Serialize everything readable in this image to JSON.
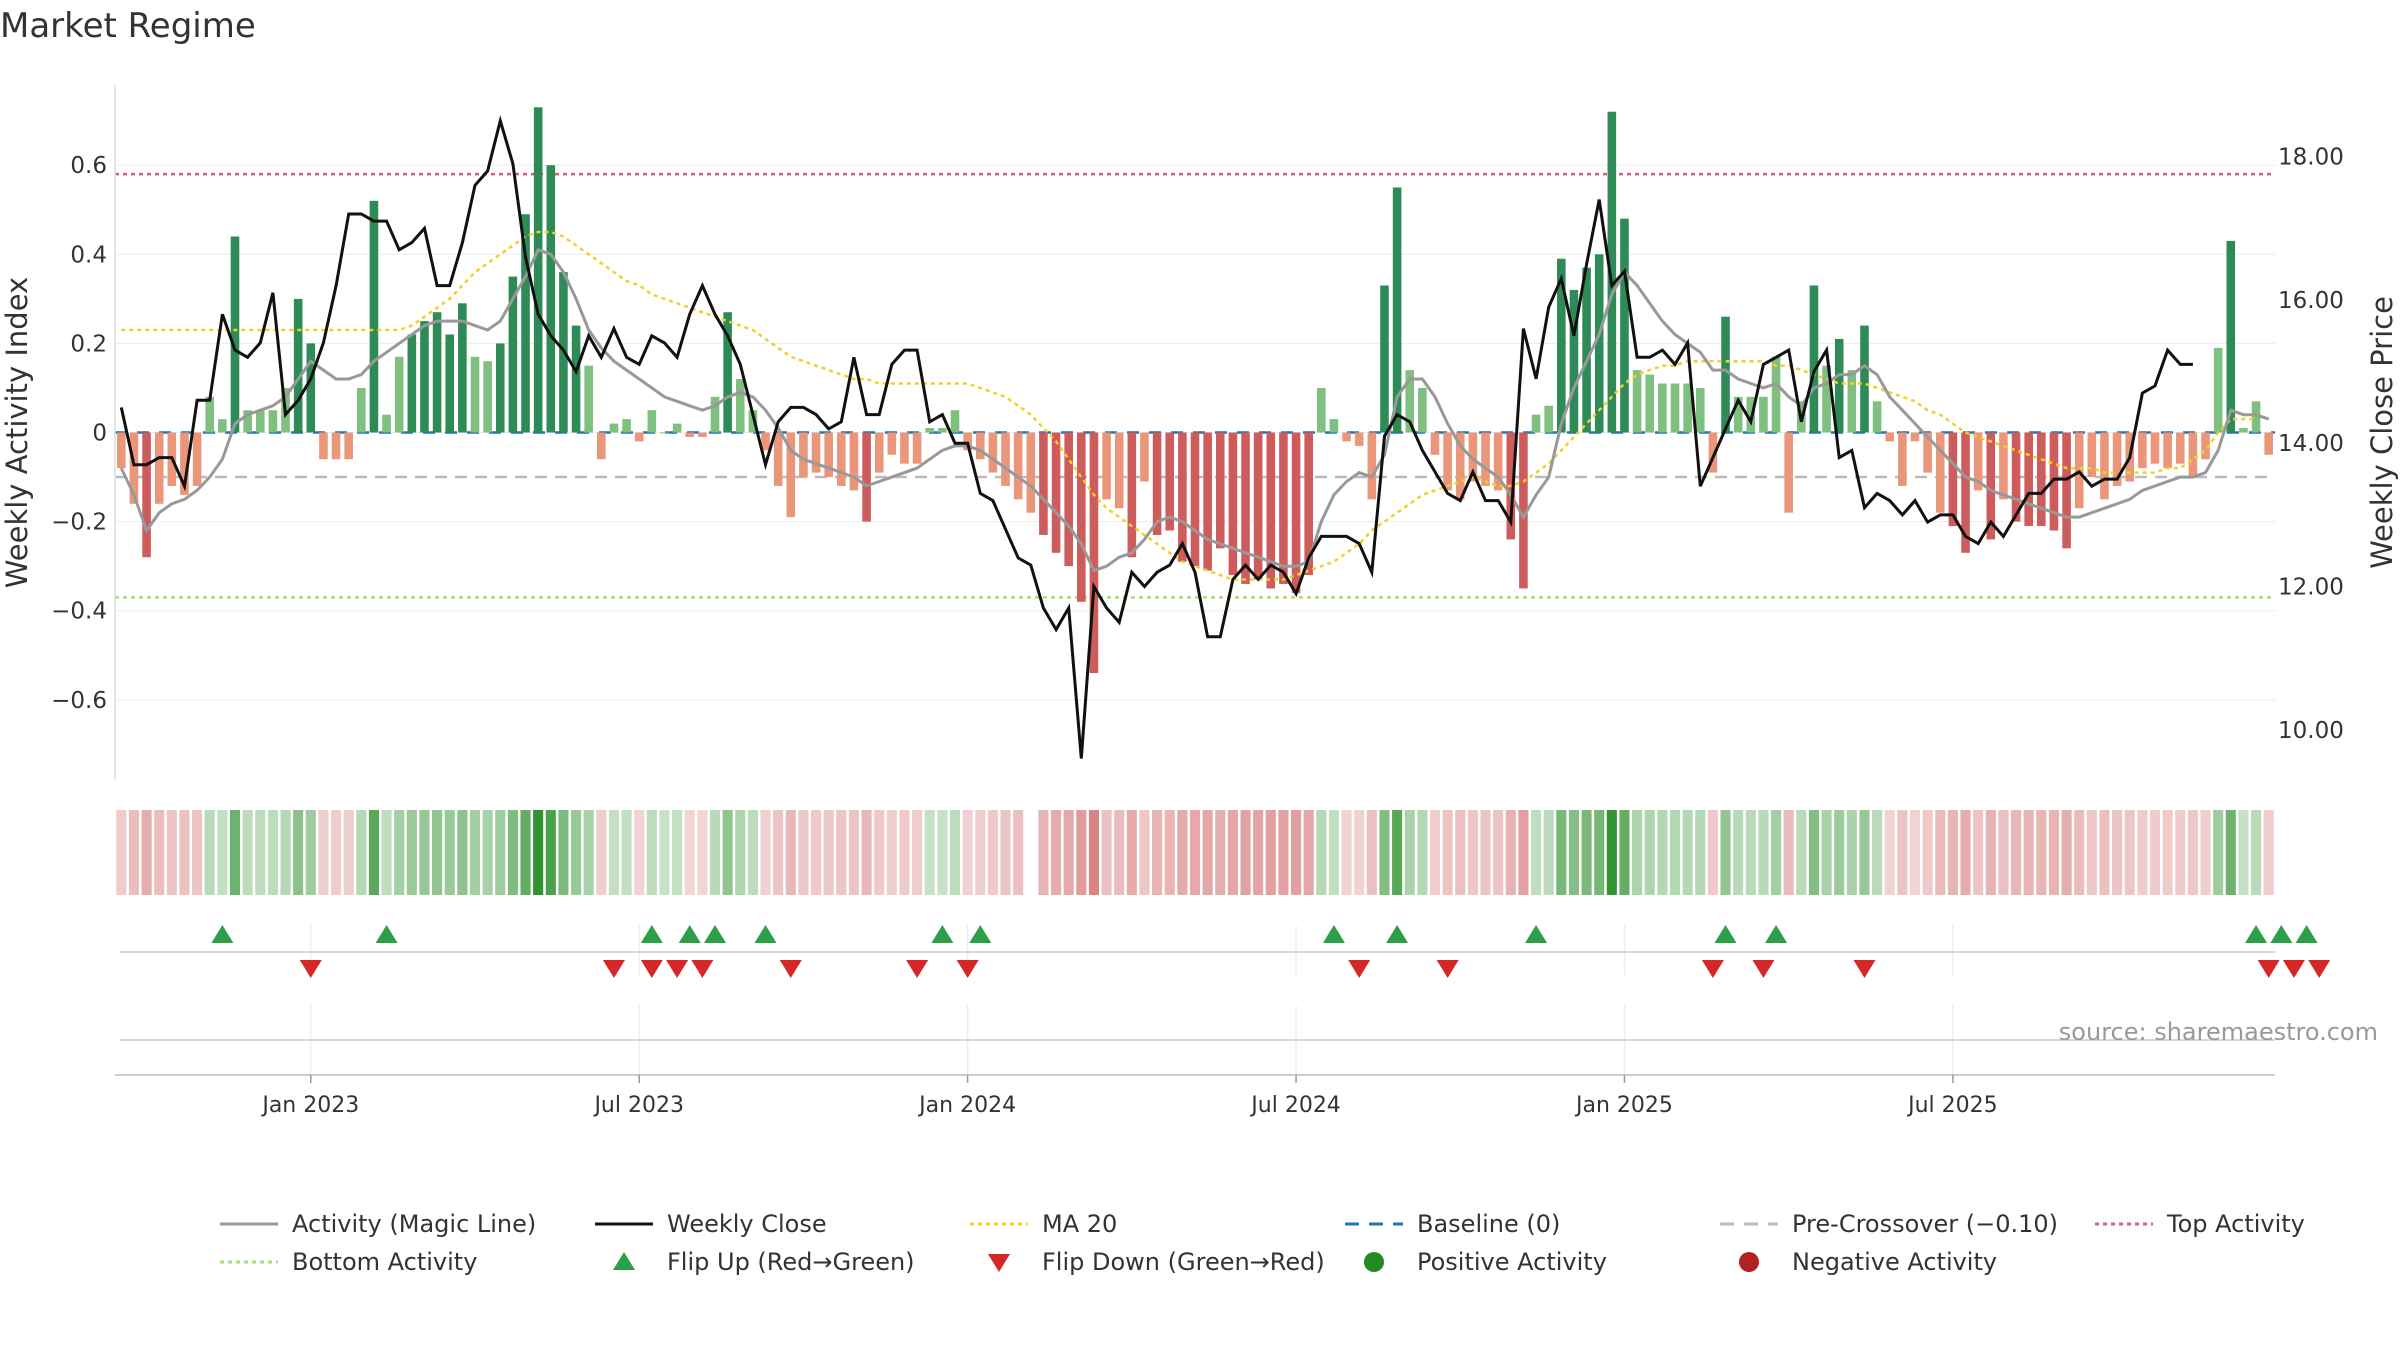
{
  "title": "Market Regime",
  "source": "source: sharemaestro.com",
  "colors": {
    "pos_dark": "#2e8b57",
    "pos_light": "#7fbf7f",
    "neg_dark": "#cd5c5c",
    "neg_light": "#e9967a",
    "close": "#111111",
    "magic": "#999999",
    "ma": "#f2d024",
    "baseline": "#1f77b4",
    "pre": "#bbbbbb",
    "top": "#e05c6e",
    "bottom": "#a6e07a",
    "flip_up": "#2ca048",
    "flip_down": "#d62728",
    "pos_dot": "#228b22",
    "neg_dot": "#b22222"
  },
  "chart_data": {
    "type": "bar",
    "x_axis": {
      "ticks": [
        "Jan 2023",
        "Jul 2023",
        "Jan 2024",
        "Jul 2024",
        "Jan 2025",
        "Jul 2025"
      ]
    },
    "left_axis": {
      "label": "Weekly Activity Index",
      "ticks": [
        "0.6",
        "0.4",
        "0.2",
        "0",
        "−0.2",
        "−0.4",
        "−0.6"
      ],
      "ylim": [
        -0.78,
        0.78
      ]
    },
    "right_axis": {
      "label": "Weekly Close Price",
      "ticks": [
        "18.00",
        "16.00",
        "14.00",
        "12.00",
        "10.00"
      ],
      "ylim": [
        9.3,
        19.0
      ]
    },
    "thresholds": {
      "top": 0.58,
      "pre_crossover": -0.1,
      "bottom": -0.37,
      "baseline": 0
    },
    "activity": [
      -0.08,
      -0.16,
      -0.28,
      -0.16,
      -0.12,
      -0.14,
      -0.12,
      0.08,
      0.03,
      0.44,
      0.05,
      0.05,
      0.05,
      0.1,
      0.3,
      0.2,
      -0.06,
      -0.06,
      -0.06,
      0.1,
      0.52,
      0.04,
      0.17,
      0.22,
      0.25,
      0.27,
      0.22,
      0.29,
      0.17,
      0.16,
      0.2,
      0.35,
      0.49,
      0.73,
      0.6,
      0.36,
      0.24,
      0.15,
      -0.06,
      0.02,
      0.03,
      -0.02,
      0.05,
      0.0,
      0.02,
      -0.01,
      -0.01,
      0.08,
      0.27,
      0.12,
      0.05,
      -0.04,
      -0.12,
      -0.19,
      -0.1,
      -0.09,
      -0.1,
      -0.12,
      -0.13,
      -0.2,
      -0.09,
      -0.05,
      -0.07,
      -0.07,
      0.01,
      0.01,
      0.05,
      -0.04,
      -0.06,
      -0.09,
      -0.12,
      -0.15,
      -0.18,
      -0.23,
      -0.27,
      -0.3,
      -0.38,
      -0.54,
      -0.15,
      -0.17,
      -0.28,
      -0.11,
      -0.23,
      -0.22,
      -0.29,
      -0.3,
      -0.31,
      -0.26,
      -0.32,
      -0.34,
      -0.33,
      -0.35,
      -0.34,
      -0.36,
      -0.32,
      0.1,
      0.03,
      -0.02,
      -0.03,
      -0.15,
      0.33,
      0.55,
      0.14,
      0.1,
      -0.05,
      -0.13,
      -0.15,
      -0.11,
      -0.12,
      -0.13,
      -0.24,
      -0.35,
      0.04,
      0.06,
      0.39,
      0.32,
      0.37,
      0.4,
      0.72,
      0.48,
      0.14,
      0.13,
      0.11,
      0.11,
      0.11,
      0.1,
      -0.09,
      0.26,
      0.08,
      0.08,
      0.08,
      0.17,
      -0.18,
      0.07,
      0.33,
      0.15,
      0.21,
      0.14,
      0.24,
      0.07,
      -0.02,
      -0.12,
      -0.02,
      -0.09,
      -0.18,
      -0.21,
      -0.27,
      -0.13,
      -0.24,
      -0.15,
      -0.2,
      -0.21,
      -0.21,
      -0.22,
      -0.26,
      -0.17,
      -0.1,
      -0.15,
      -0.12,
      -0.11,
      -0.08,
      -0.07,
      -0.08,
      -0.07,
      -0.1,
      -0.06,
      0.19,
      0.43,
      0.01,
      0.07,
      -0.05
    ],
    "close": [
      14.5,
      13.7,
      13.7,
      13.8,
      13.8,
      13.4,
      14.6,
      14.6,
      15.8,
      15.3,
      15.2,
      15.4,
      16.1,
      14.4,
      14.6,
      14.9,
      15.4,
      16.2,
      17.2,
      17.2,
      17.1,
      17.1,
      16.7,
      16.8,
      17.0,
      16.2,
      16.2,
      16.8,
      17.6,
      17.8,
      18.5,
      17.9,
      16.6,
      15.8,
      15.5,
      15.3,
      15.0,
      15.5,
      15.2,
      15.6,
      15.2,
      15.1,
      15.5,
      15.4,
      15.2,
      15.8,
      16.2,
      15.8,
      15.5,
      15.1,
      14.4,
      13.7,
      14.3,
      14.5,
      14.5,
      14.4,
      14.2,
      14.3,
      15.2,
      14.4,
      14.4,
      15.1,
      15.3,
      15.3,
      14.3,
      14.4,
      14.0,
      14.0,
      13.3,
      13.2,
      12.8,
      12.4,
      12.3,
      11.7,
      11.4,
      11.7,
      9.6,
      12.0,
      11.7,
      11.5,
      12.2,
      12.0,
      12.2,
      12.3,
      12.6,
      12.2,
      11.3,
      11.3,
      12.1,
      12.3,
      12.1,
      12.3,
      12.2,
      11.9,
      12.4,
      12.7,
      12.7,
      12.7,
      12.6,
      12.2,
      14.1,
      14.4,
      14.3,
      13.9,
      13.6,
      13.3,
      13.2,
      13.6,
      13.2,
      13.2,
      12.9,
      15.6,
      14.9,
      15.9,
      16.3,
      15.5,
      16.5,
      17.4,
      16.2,
      16.4,
      15.2,
      15.2,
      15.3,
      15.1,
      15.4,
      13.4,
      13.8,
      14.2,
      14.6,
      14.3,
      15.1,
      15.2,
      15.3,
      14.3,
      15.0,
      15.3,
      13.8,
      13.9,
      13.1,
      13.3,
      13.2,
      13.0,
      13.2,
      12.9,
      13.0,
      13.0,
      12.7,
      12.6,
      12.9,
      12.7,
      13.0,
      13.3,
      13.3,
      13.5,
      13.5,
      13.6,
      13.4,
      13.5,
      13.5,
      13.8,
      14.7,
      14.8,
      15.3,
      15.1,
      15.1
    ],
    "magic": [
      -0.08,
      -0.14,
      -0.22,
      -0.18,
      -0.16,
      -0.15,
      -0.13,
      -0.1,
      -0.06,
      0.02,
      0.04,
      0.05,
      0.06,
      0.08,
      0.12,
      0.16,
      0.14,
      0.12,
      0.12,
      0.13,
      0.16,
      0.18,
      0.2,
      0.22,
      0.24,
      0.25,
      0.25,
      0.25,
      0.24,
      0.23,
      0.25,
      0.3,
      0.35,
      0.41,
      0.4,
      0.36,
      0.3,
      0.23,
      0.19,
      0.16,
      0.14,
      0.12,
      0.1,
      0.08,
      0.07,
      0.06,
      0.05,
      0.06,
      0.08,
      0.09,
      0.08,
      0.05,
      0.01,
      -0.04,
      -0.06,
      -0.07,
      -0.08,
      -0.09,
      -0.1,
      -0.12,
      -0.11,
      -0.1,
      -0.09,
      -0.08,
      -0.06,
      -0.04,
      -0.03,
      -0.03,
      -0.04,
      -0.06,
      -0.08,
      -0.1,
      -0.12,
      -0.15,
      -0.18,
      -0.21,
      -0.25,
      -0.31,
      -0.3,
      -0.28,
      -0.27,
      -0.24,
      -0.2,
      -0.19,
      -0.2,
      -0.22,
      -0.24,
      -0.25,
      -0.26,
      -0.27,
      -0.28,
      -0.29,
      -0.3,
      -0.3,
      -0.29,
      -0.2,
      -0.14,
      -0.11,
      -0.09,
      -0.1,
      -0.05,
      0.08,
      0.12,
      0.12,
      0.08,
      0.02,
      -0.03,
      -0.06,
      -0.08,
      -0.1,
      -0.14,
      -0.19,
      -0.14,
      -0.1,
      0.02,
      0.1,
      0.16,
      0.22,
      0.31,
      0.36,
      0.33,
      0.29,
      0.25,
      0.22,
      0.2,
      0.18,
      0.14,
      0.14,
      0.12,
      0.11,
      0.1,
      0.11,
      0.08,
      0.06,
      0.1,
      0.11,
      0.13,
      0.13,
      0.15,
      0.13,
      0.08,
      0.05,
      0.02,
      -0.01,
      -0.04,
      -0.07,
      -0.1,
      -0.11,
      -0.13,
      -0.14,
      -0.15,
      -0.16,
      -0.17,
      -0.18,
      -0.19,
      -0.19,
      -0.18,
      -0.17,
      -0.16,
      -0.15,
      -0.13,
      -0.12,
      -0.11,
      -0.1,
      -0.1,
      -0.09,
      -0.04,
      0.05,
      0.04,
      0.04,
      0.03
    ],
    "ma20": [
      0.23,
      0.23,
      0.23,
      0.23,
      0.23,
      0.23,
      0.23,
      0.23,
      0.23,
      0.23,
      0.23,
      0.23,
      0.23,
      0.23,
      0.23,
      0.23,
      0.23,
      0.23,
      0.23,
      0.23,
      0.23,
      0.23,
      0.23,
      0.24,
      0.26,
      0.28,
      0.3,
      0.33,
      0.36,
      0.38,
      0.4,
      0.42,
      0.44,
      0.45,
      0.45,
      0.44,
      0.42,
      0.4,
      0.38,
      0.36,
      0.34,
      0.33,
      0.31,
      0.3,
      0.29,
      0.28,
      0.27,
      0.26,
      0.25,
      0.24,
      0.23,
      0.21,
      0.19,
      0.17,
      0.16,
      0.15,
      0.14,
      0.13,
      0.12,
      0.12,
      0.11,
      0.11,
      0.11,
      0.11,
      0.11,
      0.11,
      0.11,
      0.11,
      0.1,
      0.09,
      0.08,
      0.06,
      0.04,
      0.01,
      -0.02,
      -0.06,
      -0.1,
      -0.14,
      -0.17,
      -0.19,
      -0.21,
      -0.23,
      -0.25,
      -0.27,
      -0.29,
      -0.3,
      -0.31,
      -0.32,
      -0.33,
      -0.33,
      -0.33,
      -0.33,
      -0.33,
      -0.32,
      -0.31,
      -0.3,
      -0.29,
      -0.27,
      -0.25,
      -0.22,
      -0.2,
      -0.18,
      -0.16,
      -0.14,
      -0.13,
      -0.12,
      -0.11,
      -0.1,
      -0.11,
      -0.12,
      -0.12,
      -0.11,
      -0.09,
      -0.07,
      -0.04,
      -0.01,
      0.02,
      0.05,
      0.08,
      0.11,
      0.13,
      0.14,
      0.15,
      0.15,
      0.16,
      0.16,
      0.16,
      0.16,
      0.16,
      0.16,
      0.16,
      0.15,
      0.15,
      0.14,
      0.13,
      0.12,
      0.11,
      0.11,
      0.11,
      0.1,
      0.09,
      0.08,
      0.07,
      0.05,
      0.04,
      0.02,
      0.0,
      -0.01,
      -0.02,
      -0.03,
      -0.04,
      -0.05,
      -0.06,
      -0.07,
      -0.08,
      -0.08,
      -0.08,
      -0.09,
      -0.09,
      -0.09,
      -0.09,
      -0.09,
      -0.08,
      -0.08,
      -0.06,
      -0.04,
      0.0,
      0.03,
      0.03,
      0.03
    ],
    "flip_up": [
      8,
      21,
      42,
      45,
      47,
      51,
      65,
      68,
      96,
      101,
      112,
      127,
      131,
      169,
      171,
      173
    ],
    "flip_down": [
      15,
      39,
      42,
      44,
      46,
      53,
      63,
      67,
      98,
      105,
      126,
      130,
      138,
      170,
      172,
      174
    ],
    "strip_gap_at": [
      72
    ]
  },
  "legend": [
    {
      "key": "magic",
      "label": "Activity (Magic Line)",
      "symbol": "line"
    },
    {
      "key": "close",
      "label": "Weekly Close",
      "symbol": "line"
    },
    {
      "key": "ma",
      "label": "MA 20",
      "symbol": "dotted"
    },
    {
      "key": "baseline",
      "label": "Baseline (0)",
      "symbol": "dashed"
    },
    {
      "key": "pre",
      "label": "Pre-Crossover (−0.10)",
      "symbol": "dashed"
    },
    {
      "key": "top",
      "label": "Top Activity",
      "symbol": "dotted"
    },
    {
      "key": "bottom",
      "label": "Bottom Activity",
      "symbol": "dotted"
    },
    {
      "key": "flip_up",
      "label": "Flip Up (Red→Green)",
      "symbol": "triangle-up"
    },
    {
      "key": "flip_down",
      "label": "Flip Down (Green→Red)",
      "symbol": "triangle-down"
    },
    {
      "key": "pos_dot",
      "label": "Positive Activity",
      "symbol": "circle"
    },
    {
      "key": "neg_dot",
      "label": "Negative Activity",
      "symbol": "circle"
    }
  ]
}
